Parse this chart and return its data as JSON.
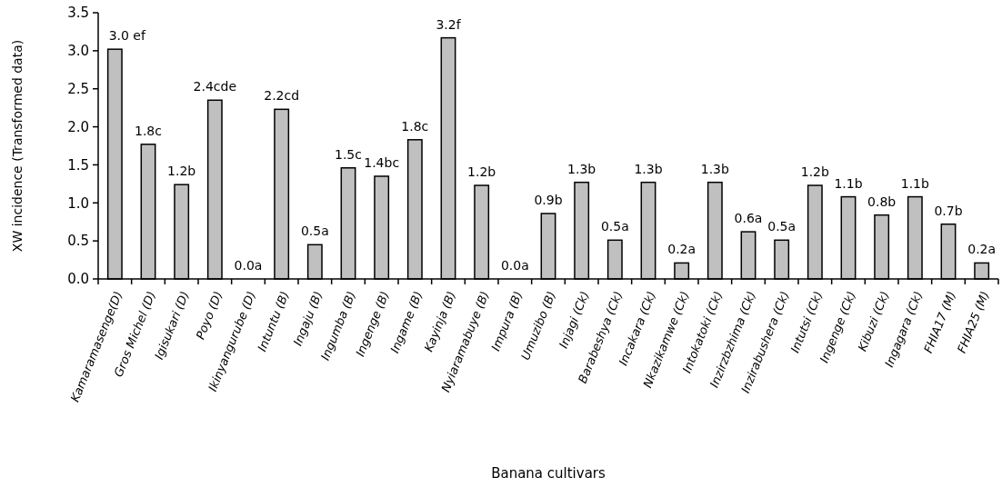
{
  "chart_data": {
    "type": "bar",
    "xlabel": "Banana cultivars",
    "ylabel": "XW incidence (Transformed data)",
    "categories": [
      "Kamaramasenge(D)",
      "Gros Michel (D)",
      "Igisukari (D)",
      "Poyo (D)",
      "Ikinyangurube (D)",
      "Intuntu (B)",
      "Ingaju (B)",
      "Ingumba (B)",
      "Ingenge (B)",
      "Ingame (B)",
      "Kayinja (B)",
      "Nyiaramabuye (B)",
      "Impura (B)",
      "Umuzibo (B)",
      "Injagi (Ck)",
      "Barabeshya (Ck)",
      "Incakara (Ck)",
      "Nkazikamwe (Ck)",
      "Intokatoki (Ck)",
      "Inzirzbzhima (Ck)",
      "Inzirabushera (Ck)",
      "Intutsi (Ck)",
      "Ingenge (Ck)",
      "Kibuzi (Ck)",
      "Ingagara (Ck)",
      "FHIA17 (M)",
      "FHIA25 (M)"
    ],
    "values": [
      3.02,
      1.77,
      1.24,
      2.35,
      0,
      2.23,
      0.45,
      1.46,
      1.35,
      1.83,
      3.17,
      1.23,
      0,
      0.86,
      1.27,
      0.51,
      1.27,
      0.21,
      1.27,
      0.62,
      0.51,
      1.23,
      1.08,
      0.84,
      1.08,
      0.72,
      0.21
    ],
    "value_labels": [
      "3.0 ef",
      "1.8c",
      "1.2b",
      "2.4cde",
      "0.0a",
      "2.2cd",
      "0.5a",
      "1.5c",
      "1.4bc",
      "1.8c",
      "3.2f",
      "1.2b",
      "0.0a",
      "0.9b",
      "1.3b",
      "0.5a",
      "1.3b",
      "0.2a",
      "1.3b",
      "0.6a",
      "0.5a",
      "1.2b",
      "1.1b",
      "0.8b",
      "1.1b",
      "0.7b",
      "0.2a"
    ],
    "color": "#c0c0c0",
    "ylim": [
      0,
      3.5
    ],
    "yticks": [
      {
        "value": 0,
        "label": "0.0"
      },
      {
        "value": 0.5,
        "label": "0.5"
      },
      {
        "value": 1,
        "label": "1.0"
      },
      {
        "value": 1.5,
        "label": "1.5"
      },
      {
        "value": 2,
        "label": "2.0"
      },
      {
        "value": 2.5,
        "label": "2.5"
      },
      {
        "value": 3,
        "label": "3.0"
      },
      {
        "value": 3.5,
        "label": "3.5"
      }
    ],
    "grid": false
  }
}
